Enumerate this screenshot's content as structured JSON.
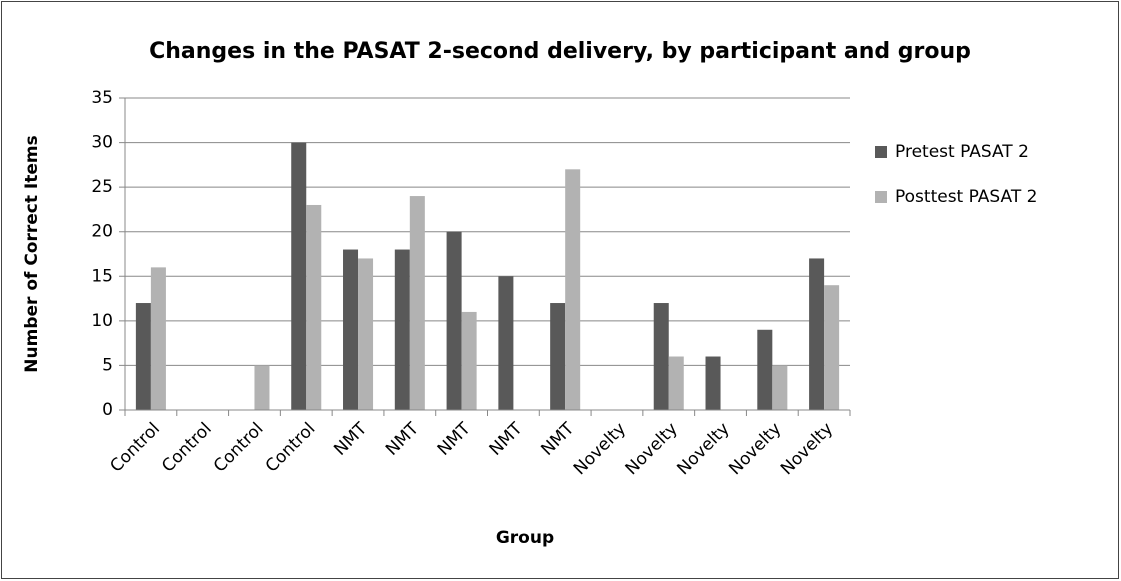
{
  "chart_data": {
    "type": "bar",
    "title": "Changes in the PASAT 2-second delivery, by participant and group",
    "x_label": "Group",
    "y_label": "Number of Correct Items",
    "categories": [
      "Control",
      "Control",
      "Control",
      "Control",
      "NMT",
      "NMT",
      "NMT",
      "NMT",
      "NMT",
      "Novelty",
      "Novelty",
      "Novelty",
      "Novelty",
      "Novelty"
    ],
    "series": [
      {
        "name": "Pretest PASAT 2",
        "color": "#595959",
        "values": [
          12,
          0,
          0,
          30,
          18,
          18,
          20,
          15,
          12,
          0,
          12,
          6,
          9,
          17
        ]
      },
      {
        "name": "Posttest PASAT 2",
        "color": "#b2b2b2",
        "values": [
          16,
          0,
          5,
          23,
          17,
          24,
          11,
          0,
          27,
          0,
          6,
          0,
          5,
          14
        ]
      }
    ],
    "ylim": [
      0,
      35
    ],
    "yticks": [
      0,
      5,
      10,
      15,
      20,
      25,
      30,
      35
    ],
    "grid": true,
    "legend": "right"
  }
}
